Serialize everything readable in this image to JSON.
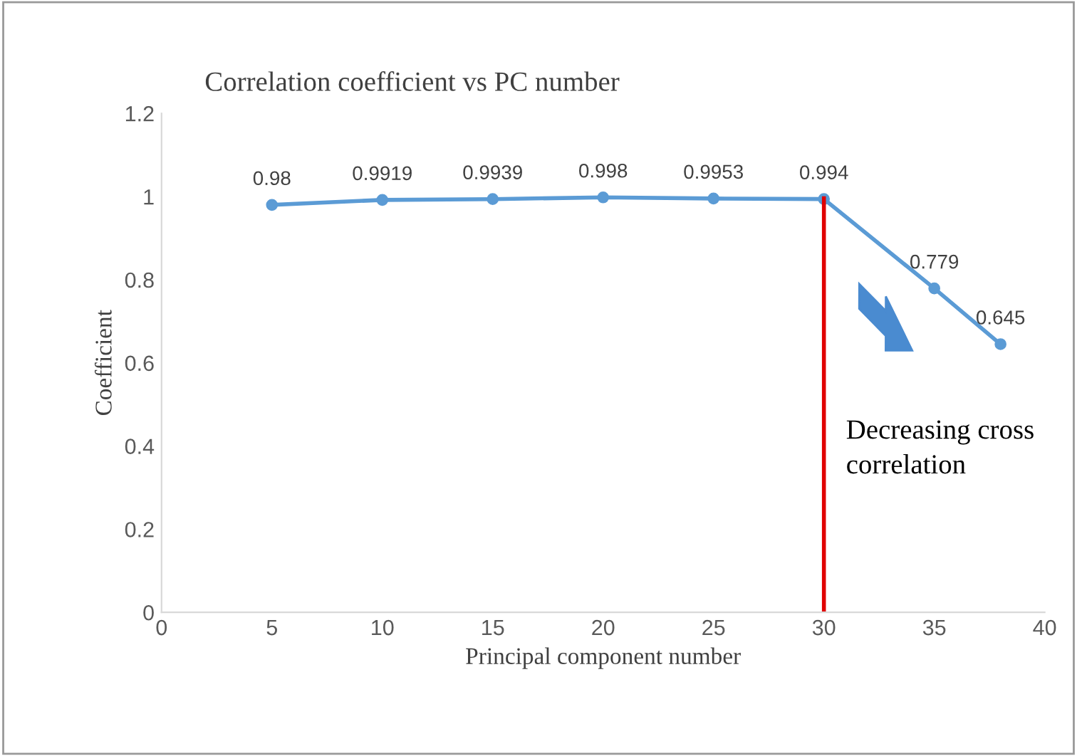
{
  "chart_data": {
    "type": "line",
    "title": "Correlation coefficient vs PC number",
    "xlabel": "Principal component number",
    "ylabel": "Coefficient",
    "x": [
      5,
      10,
      15,
      20,
      25,
      30,
      35,
      38
    ],
    "series": [
      {
        "color": "#5b9bd5",
        "values": [
          0.98,
          0.9919,
          0.9939,
          0.998,
          0.9953,
          0.994,
          0.779,
          0.645
        ]
      }
    ],
    "data_labels": true,
    "marker": "circle",
    "line_style": "solid",
    "grid": false,
    "legend": false,
    "xlim": [
      0,
      40
    ],
    "xticks": [
      0,
      5,
      10,
      15,
      20,
      25,
      30,
      35,
      40
    ],
    "ylim": [
      0,
      1.2
    ],
    "yticks": [
      0,
      0.2,
      0.4,
      0.6,
      0.8,
      1,
      1.2
    ],
    "ref_lines": [
      {
        "axis": "x",
        "value": 30,
        "label": "Decreasing cross\ncorrelation",
        "color": "#e00000",
        "line_style": "solid"
      }
    ]
  }
}
